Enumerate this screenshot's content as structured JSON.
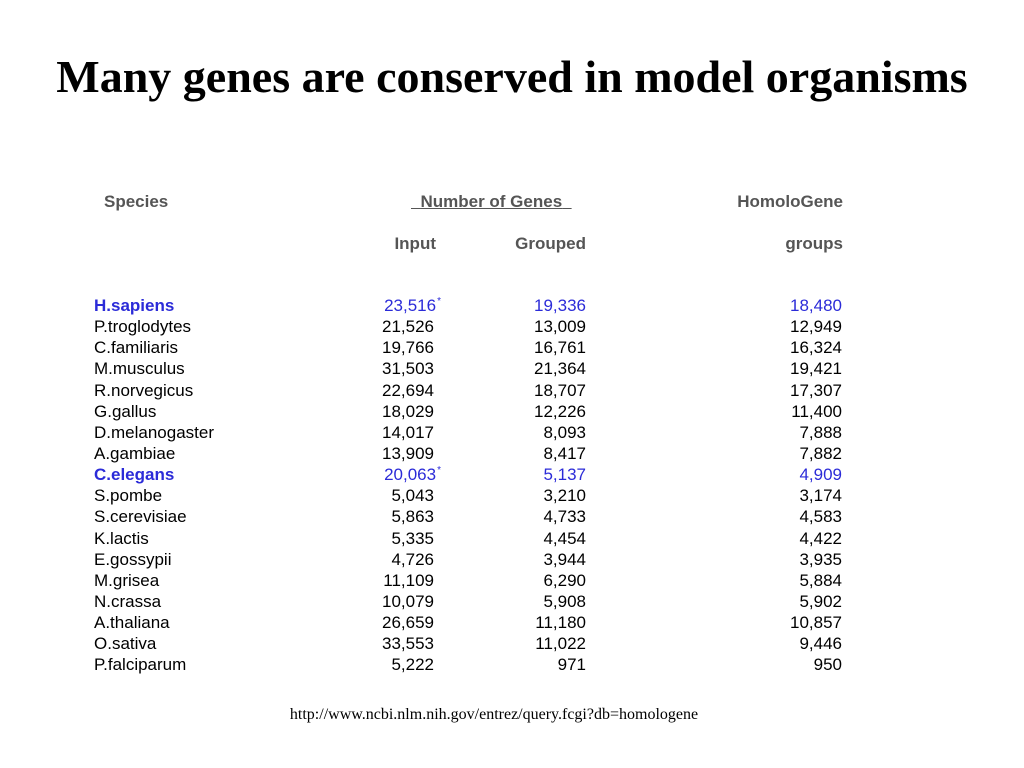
{
  "title": "Many genes are conserved in model organisms",
  "headers": {
    "species": "Species",
    "number_of_genes": "Number of Genes",
    "homologene": "HomoloGene",
    "input": "Input",
    "grouped": "Grouped",
    "groups": "groups"
  },
  "colors": {
    "highlight": "#2b2bd8",
    "header": "#555555",
    "text": "#000000"
  },
  "rows": [
    {
      "species": "H.sapiens",
      "input": "23,516",
      "star": "*",
      "grouped": "19,336",
      "groups": "18,480",
      "highlight": true
    },
    {
      "species": "P.troglodytes",
      "input": "21,526",
      "grouped": "13,009",
      "groups": "12,949"
    },
    {
      "species": "C.familiaris",
      "input": "19,766",
      "grouped": "16,761",
      "groups": "16,324"
    },
    {
      "species": "M.musculus",
      "input": "31,503",
      "grouped": "21,364",
      "groups": "19,421"
    },
    {
      "species": "R.norvegicus",
      "input": "22,694",
      "grouped": "18,707",
      "groups": "17,307"
    },
    {
      "species": "G.gallus",
      "input": "18,029",
      "grouped": "12,226",
      "groups": "11,400"
    },
    {
      "species": "D.melanogaster",
      "input": "14,017",
      "grouped": "8,093",
      "groups": "7,888"
    },
    {
      "species": "A.gambiae",
      "input": "13,909",
      "grouped": "8,417",
      "groups": "7,882"
    },
    {
      "species": "C.elegans",
      "input": "20,063",
      "star": "*",
      "grouped": "5,137",
      "groups": "4,909",
      "highlight": true
    },
    {
      "species": "S.pombe",
      "input": "5,043",
      "grouped": "3,210",
      "groups": "3,174"
    },
    {
      "species": "S.cerevisiae",
      "input": "5,863",
      "grouped": "4,733",
      "groups": "4,583"
    },
    {
      "species": "K.lactis",
      "input": "5,335",
      "grouped": "4,454",
      "groups": "4,422"
    },
    {
      "species": "E.gossypii",
      "input": "4,726",
      "grouped": "3,944",
      "groups": "3,935"
    },
    {
      "species": "M.grisea",
      "input": "11,109",
      "grouped": "6,290",
      "groups": "5,884"
    },
    {
      "species": "N.crassa",
      "input": "10,079",
      "grouped": "5,908",
      "groups": "5,902"
    },
    {
      "species": "A.thaliana",
      "input": "26,659",
      "grouped": "11,180",
      "groups": "10,857"
    },
    {
      "species": "O.sativa",
      "input": "33,553",
      "grouped": "11,022",
      "groups": "9,446"
    },
    {
      "species": "P.falciparum",
      "input": "5,222",
      "grouped": "971",
      "groups": "950"
    }
  ],
  "source_url": "http://www.ncbi.nlm.nih.gov/entrez/query.fcgi?db=homologene"
}
